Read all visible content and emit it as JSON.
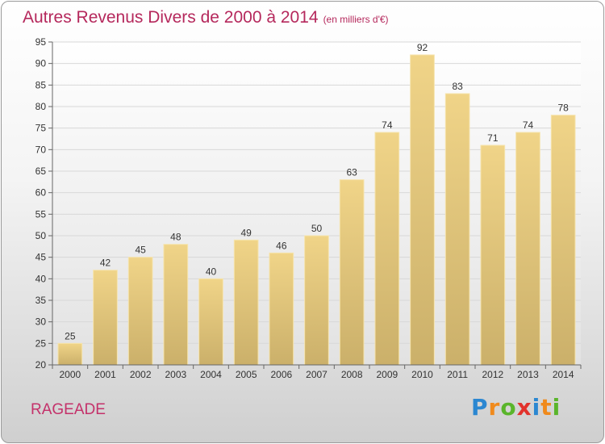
{
  "header": {
    "title": "Autres Revenus Divers de 2000 à 2014",
    "unit": "(en milliers d'€)"
  },
  "footer": {
    "location": "RAGEADE",
    "brand": "Proxiti",
    "brand_letters": [
      "P",
      "r",
      "o",
      "x",
      "i",
      "t",
      "i"
    ],
    "brand_colors": [
      "#2b87d1",
      "#f08a1c",
      "#5ab52b",
      "#e2322c",
      "#2b87d1",
      "#f08a1c",
      "#5ab52b"
    ]
  },
  "chart_data": {
    "type": "bar",
    "title": "Autres Revenus Divers de 2000 à 2014",
    "xlabel": "",
    "ylabel": "",
    "categories": [
      "2000",
      "2001",
      "2002",
      "2003",
      "2004",
      "2005",
      "2006",
      "2007",
      "2008",
      "2009",
      "2010",
      "2011",
      "2012",
      "2013",
      "2014"
    ],
    "values": [
      25,
      42,
      45,
      48,
      40,
      49,
      46,
      50,
      63,
      74,
      92,
      83,
      71,
      74,
      78
    ],
    "ylim": [
      20,
      95
    ],
    "yticks": [
      20,
      25,
      30,
      35,
      40,
      45,
      50,
      55,
      60,
      65,
      70,
      75,
      80,
      85,
      90,
      95
    ],
    "grid": true,
    "bar_color": "#f0d488",
    "bar_color_bottom": "#cbb06a"
  }
}
